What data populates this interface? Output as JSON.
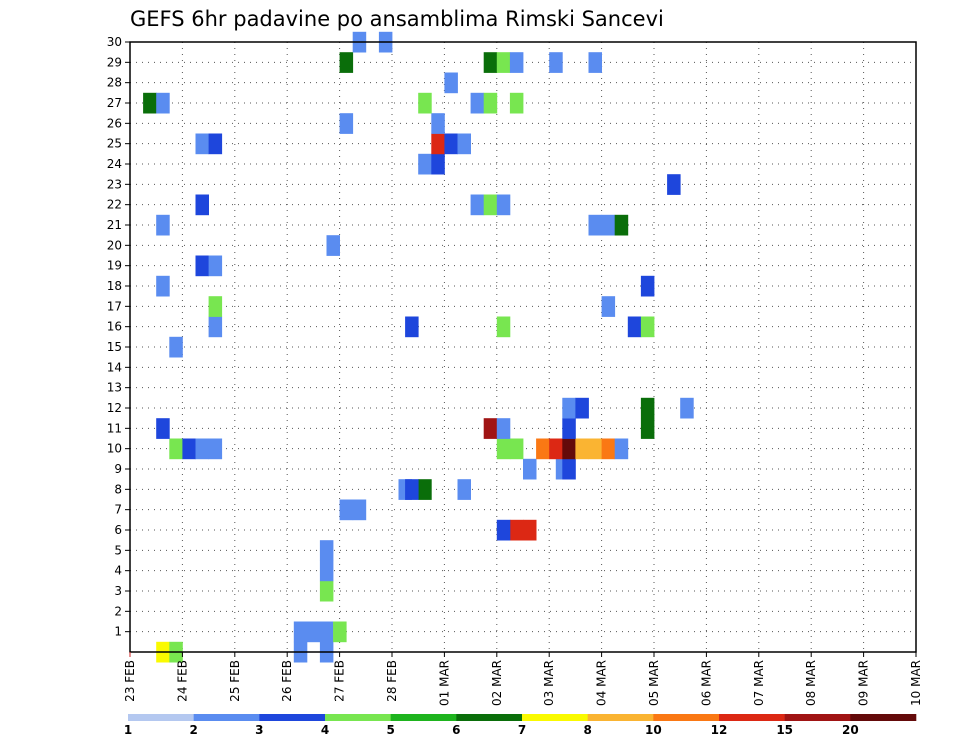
{
  "chart_data": {
    "type": "heatmap",
    "title": "GEFS 6hr padavine po ansamblima Rimski Sancevi",
    "x_labels": [
      "23 FEB",
      "24 FEB",
      "25 FEB",
      "26 FEB",
      "27 FEB",
      "28 FEB",
      "01 MAR",
      "02 MAR",
      "03 MAR",
      "04 MAR",
      "05 MAR",
      "06 MAR",
      "07 MAR",
      "08 MAR",
      "09 MAR",
      "10 MAR"
    ],
    "y_labels": [
      "1",
      "2",
      "3",
      "4",
      "5",
      "6",
      "7",
      "8",
      "9",
      "10",
      "11",
      "12",
      "13",
      "14",
      "15",
      "16",
      "17",
      "18",
      "19",
      "20",
      "21",
      "22",
      "23",
      "24",
      "25",
      "26",
      "27",
      "28",
      "29",
      "30"
    ],
    "x_range_days": [
      0,
      15
    ],
    "y_range": [
      0,
      30
    ],
    "grid": true,
    "color_scale": {
      "labels": [
        "1",
        "2",
        "3",
        "4",
        "5",
        "6",
        "7",
        "8",
        "10",
        "12",
        "15",
        "20"
      ],
      "colors": [
        "#b4c8f0",
        "#5a8cf0",
        "#1e46dc",
        "#78e650",
        "#1eb41e",
        "#0a6e0a",
        "#fafa00",
        "#fab432",
        "#fa7814",
        "#dc2814",
        "#a01414",
        "#640a0a"
      ]
    },
    "cells": [
      [
        7.625,
        0,
        6
      ],
      [
        7.875,
        0,
        3
      ],
      [
        10.25,
        0,
        1
      ],
      [
        10.75,
        0,
        1
      ],
      [
        10.25,
        1,
        1
      ],
      [
        10.5,
        1,
        1
      ],
      [
        10.75,
        1,
        1
      ],
      [
        11,
        1,
        3
      ],
      [
        10.75,
        3,
        3
      ],
      [
        10.75,
        4,
        1
      ],
      [
        10.75,
        5,
        1
      ],
      [
        14.375,
        6,
        9
      ],
      [
        14.625,
        6,
        9
      ],
      [
        14.125,
        6,
        2
      ],
      [
        11.125,
        7,
        1
      ],
      [
        11.375,
        7,
        1
      ],
      [
        12.25,
        8,
        1
      ],
      [
        12.625,
        8,
        5
      ],
      [
        12.375,
        8,
        2
      ],
      [
        13.375,
        8,
        1
      ],
      [
        14.625,
        9,
        1
      ],
      [
        15.25,
        9,
        1
      ],
      [
        15.375,
        9,
        2
      ],
      [
        7.875,
        10,
        3
      ],
      [
        8.125,
        10,
        2
      ],
      [
        8.375,
        10,
        1
      ],
      [
        8.625,
        10,
        1
      ],
      [
        14.125,
        10,
        3
      ],
      [
        14.375,
        10,
        3
      ],
      [
        14.875,
        10,
        8
      ],
      [
        15.125,
        10,
        9
      ],
      [
        15.375,
        10,
        11
      ],
      [
        15.625,
        10,
        7
      ],
      [
        15.875,
        10,
        7
      ],
      [
        16.125,
        10,
        8
      ],
      [
        16.375,
        10,
        1
      ],
      [
        7.625,
        11,
        2
      ],
      [
        13.875,
        11,
        10
      ],
      [
        14.125,
        11,
        1
      ],
      [
        15.375,
        11,
        2
      ],
      [
        16.875,
        11,
        5
      ],
      [
        15.375,
        12,
        1
      ],
      [
        15.625,
        12,
        2
      ],
      [
        16.875,
        12,
        5
      ],
      [
        17.625,
        12,
        1
      ],
      [
        7.875,
        15,
        1
      ],
      [
        8.625,
        16,
        1
      ],
      [
        12.375,
        16,
        2
      ],
      [
        14.125,
        16,
        3
      ],
      [
        16.625,
        16,
        2
      ],
      [
        16.875,
        16,
        3
      ],
      [
        8.625,
        17,
        3
      ],
      [
        16.125,
        17,
        1
      ],
      [
        7.625,
        18,
        1
      ],
      [
        16.875,
        18,
        2
      ],
      [
        8.375,
        19,
        2
      ],
      [
        8.625,
        19,
        1
      ],
      [
        10.875,
        20,
        1
      ],
      [
        7.625,
        21,
        1
      ],
      [
        15.875,
        21,
        1
      ],
      [
        16.125,
        21,
        1
      ],
      [
        16.375,
        21,
        5
      ],
      [
        8.375,
        22,
        2
      ],
      [
        13.625,
        22,
        1
      ],
      [
        13.875,
        22,
        3
      ],
      [
        14.125,
        22,
        1
      ],
      [
        17.375,
        23,
        2
      ],
      [
        12.625,
        24,
        1
      ],
      [
        12.875,
        24,
        2
      ],
      [
        8.375,
        25,
        1
      ],
      [
        8.625,
        25,
        2
      ],
      [
        12.875,
        25,
        9
      ],
      [
        13.125,
        25,
        2
      ],
      [
        13.375,
        25,
        1
      ],
      [
        11.125,
        26,
        1
      ],
      [
        12.875,
        26,
        1
      ],
      [
        7.375,
        27,
        5
      ],
      [
        7.625,
        27,
        1
      ],
      [
        12.625,
        27,
        3
      ],
      [
        13.625,
        27,
        1
      ],
      [
        13.875,
        27,
        3
      ],
      [
        14.375,
        27,
        3
      ],
      [
        13.125,
        28,
        1
      ],
      [
        11.125,
        29,
        5
      ],
      [
        13.875,
        29,
        5
      ],
      [
        14.125,
        29,
        3
      ],
      [
        14.375,
        29,
        1
      ],
      [
        15.125,
        29,
        1
      ],
      [
        15.875,
        29,
        1
      ],
      [
        11.375,
        30,
        1
      ],
      [
        11.875,
        30,
        1
      ]
    ]
  }
}
